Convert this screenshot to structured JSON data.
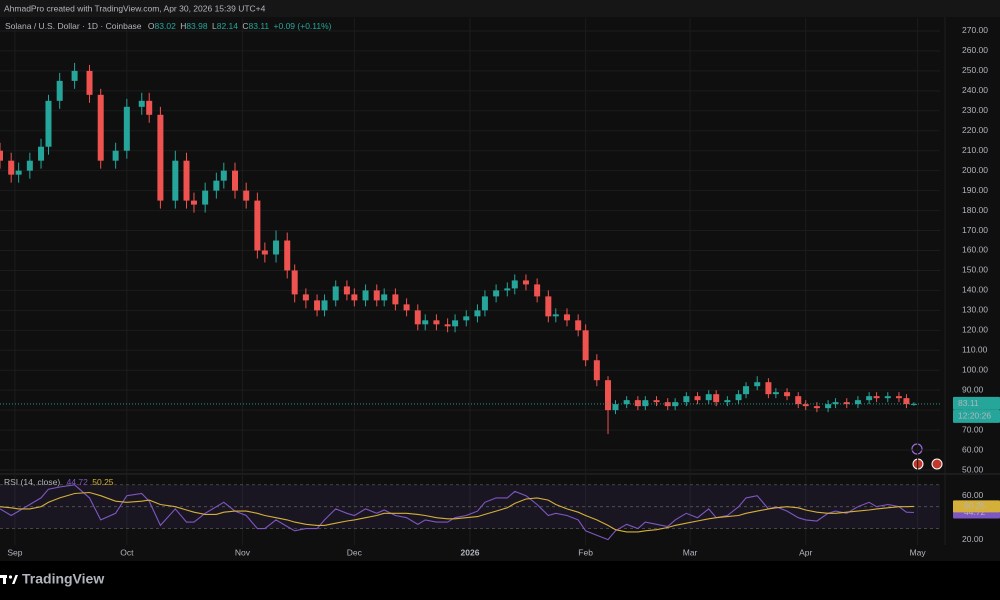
{
  "header": "AhmadPro created with TradingView.com, Apr 30, 2026 15:39 UTC+4",
  "brand": "TradingView",
  "chart_data": [
    {
      "type": "candlestick",
      "title": "Solana / U.S. Dollar · 1D · Coinbase",
      "ohlc_labels": [
        "O",
        "H",
        "L",
        "C"
      ],
      "change": "+0.09 (+0.11%)",
      "countdown": "12:20:26",
      "up_color": "#26a69a",
      "down_color": "#ef5350",
      "grid": true,
      "last_price_line": true,
      "x": [
        0,
        3,
        5,
        8,
        11,
        13,
        16,
        20,
        24,
        27,
        31,
        34,
        38,
        40,
        43,
        47,
        50,
        52,
        55,
        58,
        60,
        63,
        66,
        69,
        71,
        74,
        77,
        79,
        82,
        85,
        87,
        90,
        93,
        95,
        98,
        101,
        103,
        106,
        109,
        112,
        114,
        117,
        120,
        122,
        125,
        128,
        130,
        133,
        136,
        138,
        141,
        144,
        147,
        149,
        152,
        155,
        157,
        160,
        163,
        165,
        168,
        171,
        173,
        176,
        179,
        181,
        184,
        187,
        190,
        192,
        195,
        198,
        200,
        203,
        206,
        208,
        211,
        214,
        216,
        219,
        222,
        224,
        227,
        230,
        233,
        235,
        238,
        241,
        243,
        245
      ],
      "open": [
        210,
        205,
        198,
        200,
        205,
        212,
        235,
        245,
        250,
        238,
        205,
        210,
        232,
        235,
        228,
        185,
        205,
        185,
        183,
        190,
        195,
        200,
        190,
        185,
        160,
        158,
        165,
        150,
        138,
        135,
        130,
        135,
        142,
        138,
        135,
        140,
        135,
        138,
        133,
        130,
        123,
        125,
        123,
        122,
        125,
        127,
        130,
        137,
        140,
        141,
        145,
        143,
        137,
        127,
        128,
        125,
        120,
        105,
        95,
        80,
        83,
        85,
        82,
        85,
        84,
        82,
        84,
        87,
        85,
        88,
        84,
        85,
        88,
        92,
        94,
        88,
        89,
        87,
        83,
        82,
        81,
        83,
        84,
        83,
        85,
        87,
        86,
        87,
        86,
        83.02
      ],
      "high": [
        214,
        209,
        204,
        209,
        216,
        238,
        249,
        254,
        253,
        241,
        214,
        236,
        239,
        239,
        232,
        210,
        209,
        189,
        194,
        199,
        204,
        204,
        194,
        189,
        164,
        170,
        169,
        153,
        141,
        138,
        138,
        145,
        145,
        141,
        143,
        143,
        141,
        141,
        136,
        133,
        128,
        128,
        126,
        128,
        130,
        133,
        140,
        143,
        144,
        148,
        148,
        146,
        140,
        131,
        131,
        128,
        123,
        108,
        97,
        85,
        87,
        87,
        87,
        87,
        86,
        86,
        89,
        89,
        90,
        90,
        87,
        90,
        94,
        97,
        96,
        91,
        91,
        89,
        85,
        84,
        85,
        86,
        86,
        87,
        89,
        89,
        89,
        89,
        88,
        83.98
      ],
      "low": [
        201,
        194,
        194,
        196,
        201,
        208,
        231,
        241,
        234,
        201,
        201,
        206,
        228,
        224,
        181,
        181,
        181,
        179,
        179,
        186,
        191,
        186,
        181,
        156,
        154,
        154,
        146,
        134,
        131,
        127,
        127,
        132,
        135,
        132,
        132,
        132,
        132,
        130,
        127,
        120,
        120,
        120,
        119,
        119,
        122,
        124,
        127,
        134,
        137,
        138,
        140,
        134,
        124,
        124,
        122,
        117,
        102,
        92,
        68,
        78,
        81,
        80,
        80,
        82,
        80,
        80,
        82,
        83,
        83,
        82,
        82,
        83,
        86,
        90,
        86,
        86,
        85,
        81,
        80,
        79,
        79,
        81,
        81,
        81,
        83,
        84,
        84,
        84,
        81,
        82.14
      ],
      "close": [
        205,
        198,
        200,
        205,
        212,
        235,
        245,
        250,
        238,
        205,
        210,
        232,
        235,
        228,
        185,
        205,
        185,
        183,
        190,
        195,
        200,
        190,
        185,
        160,
        158,
        165,
        150,
        138,
        135,
        130,
        135,
        142,
        138,
        135,
        140,
        135,
        138,
        133,
        130,
        123,
        125,
        123,
        122,
        125,
        127,
        130,
        137,
        140,
        141,
        145,
        143,
        137,
        127,
        128,
        125,
        120,
        105,
        95,
        80,
        83,
        85,
        82,
        85,
        84,
        82,
        84,
        87,
        85,
        88,
        84,
        85,
        88,
        92,
        94,
        88,
        89,
        87,
        83,
        82,
        81,
        83,
        84,
        83,
        85,
        87,
        86,
        87,
        86,
        83.02,
        83.11
      ],
      "xlim": [
        0,
        252
      ],
      "xticks": [
        {
          "value": 4,
          "label": "Sep"
        },
        {
          "value": 34,
          "label": "Oct"
        },
        {
          "value": 65,
          "label": "Nov"
        },
        {
          "value": 95,
          "label": "Dec"
        },
        {
          "value": 126,
          "label": "2026"
        },
        {
          "value": 157,
          "label": "Feb"
        },
        {
          "value": 185,
          "label": "Mar"
        },
        {
          "value": 216,
          "label": "Apr"
        },
        {
          "value": 246,
          "label": "May"
        }
      ],
      "ylim": [
        49,
        275.5
      ],
      "yticks": [
        {
          "value": 50,
          "label": "50.00"
        },
        {
          "value": 60,
          "label": "60.00"
        },
        {
          "value": 70,
          "label": "70.00"
        },
        {
          "value": 80,
          "label": "80.00"
        },
        {
          "value": 90,
          "label": "90.00"
        },
        {
          "value": 100,
          "label": "100.00"
        },
        {
          "value": 110,
          "label": "110.00"
        },
        {
          "value": 120,
          "label": "120.00"
        },
        {
          "value": 130,
          "label": "130.00"
        },
        {
          "value": 140,
          "label": "140.00"
        },
        {
          "value": 150,
          "label": "150.00"
        },
        {
          "value": 160,
          "label": "160.00"
        },
        {
          "value": 170,
          "label": "170.00"
        },
        {
          "value": 180,
          "label": "180.00"
        },
        {
          "value": 190,
          "label": "190.00"
        },
        {
          "value": 200,
          "label": "200.00"
        },
        {
          "value": 210,
          "label": "210.00"
        },
        {
          "value": 220,
          "label": "220.00"
        },
        {
          "value": 230,
          "label": "230.00"
        },
        {
          "value": 240,
          "label": "240.00"
        },
        {
          "value": 250,
          "label": "250.00"
        },
        {
          "value": 260,
          "label": "260.00"
        },
        {
          "value": 270,
          "label": "270.00"
        }
      ]
    },
    {
      "type": "line",
      "title": "RSI (14, close)",
      "levels": [
        70,
        50,
        30
      ],
      "band_color": "#7e57c2",
      "ylim": [
        16,
        78
      ],
      "yticks": [
        {
          "value": 20,
          "label": "20.00"
        },
        {
          "value": 60,
          "label": "60.00"
        }
      ],
      "series": [
        {
          "color": "#7e57c2",
          "label_text_color": "#ffffff",
          "values": [
            48,
            42,
            46,
            52,
            58,
            66,
            68,
            70,
            58,
            38,
            44,
            60,
            62,
            55,
            33,
            48,
            36,
            36,
            44,
            50,
            54,
            46,
            42,
            30,
            30,
            38,
            32,
            28,
            30,
            30,
            38,
            48,
            44,
            42,
            48,
            44,
            47,
            42,
            40,
            34,
            38,
            36,
            36,
            40,
            42,
            46,
            54,
            58,
            58,
            64,
            60,
            52,
            42,
            44,
            42,
            38,
            28,
            24,
            20,
            28,
            34,
            30,
            36,
            34,
            32,
            38,
            44,
            40,
            48,
            40,
            42,
            50,
            58,
            60,
            48,
            50,
            46,
            40,
            38,
            37,
            44,
            46,
            44,
            50,
            54,
            50,
            52,
            50,
            45,
            44.72
          ]
        },
        {
          "color": "#d4b03a",
          "label_text_color": "#000000",
          "values": [
            50,
            49,
            48,
            48,
            50,
            54,
            58,
            62,
            63,
            60,
            55,
            54,
            55,
            56,
            52,
            50,
            47,
            45,
            43,
            43,
            45,
            46,
            46,
            44,
            42,
            40,
            38,
            36,
            34,
            33,
            33,
            35,
            37,
            38,
            40,
            42,
            44,
            44,
            44,
            43,
            42,
            40,
            39,
            39,
            40,
            41,
            43,
            46,
            49,
            53,
            57,
            58,
            56,
            52,
            48,
            45,
            42,
            38,
            33,
            29,
            27,
            27,
            28,
            29,
            31,
            33,
            35,
            37,
            39,
            40,
            41,
            42,
            44,
            46,
            48,
            49,
            50,
            49,
            47,
            45,
            44,
            44,
            45,
            46,
            47,
            48,
            49,
            50,
            50,
            50.25
          ]
        }
      ]
    }
  ]
}
